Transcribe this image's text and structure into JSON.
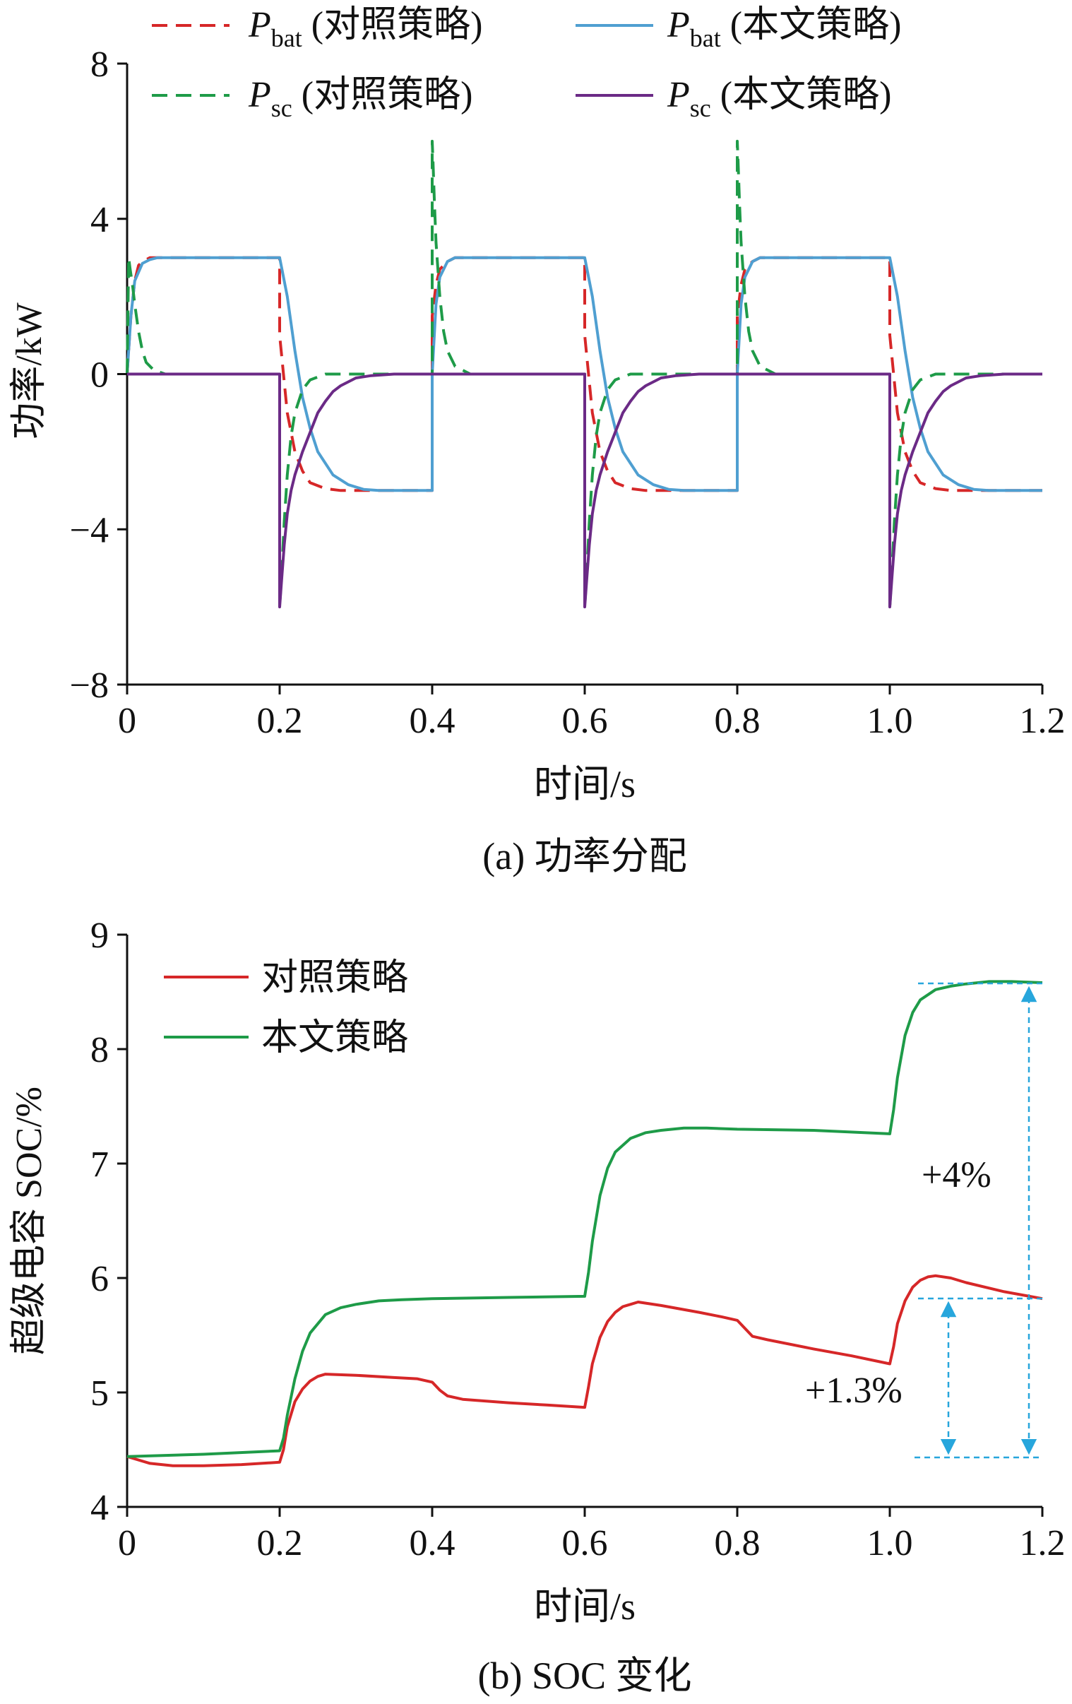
{
  "colors": {
    "red": "#d62728",
    "blue": "#4f9fd1",
    "green": "#1e9b48",
    "purple": "#6b2a86",
    "cyan": "#27a6dc",
    "axis": "#111111"
  },
  "chart_data": [
    {
      "type": "line",
      "caption": "(a)  功率分配",
      "xlabel": "时间/s",
      "ylabel": "功率/kW",
      "xlim": [
        0,
        1.2
      ],
      "ylim": [
        -8,
        8
      ],
      "xticks": [
        "0",
        "0.2",
        "0.4",
        "0.6",
        "0.8",
        "1.0",
        "1.2"
      ],
      "yticks": [
        "8",
        "4",
        "0",
        "−4",
        "−8"
      ],
      "legend_position": "top",
      "legend": [
        {
          "main": "P",
          "sub": "bat",
          "suffix": " (对照策略)",
          "color": "red",
          "dash": true
        },
        {
          "main": "P",
          "sub": "bat",
          "suffix": " (本文策略)",
          "color": "blue",
          "dash": false
        },
        {
          "main": "P",
          "sub": "sc",
          "suffix": " (对照策略)",
          "color": "green",
          "dash": true
        },
        {
          "main": "P",
          "sub": "sc",
          "suffix": " (本文策略)",
          "color": "purple",
          "dash": false
        }
      ],
      "series": [
        {
          "key": "pbat_cmp",
          "color": "red",
          "dash": true,
          "x": [
            0,
            0.005,
            0.01,
            0.015,
            0.02,
            0.03,
            0.04,
            0.05,
            0.2,
            0.2,
            0.205,
            0.21,
            0.22,
            0.23,
            0.24,
            0.26,
            0.28,
            0.3,
            0.4,
            0.4,
            0.405,
            0.41,
            0.42,
            0.43,
            0.45,
            0.6,
            0.6,
            0.605,
            0.61,
            0.62,
            0.63,
            0.64,
            0.66,
            0.68,
            0.7,
            0.8,
            0.8,
            0.805,
            0.81,
            0.82,
            0.83,
            0.85,
            1.0,
            1.0,
            1.005,
            1.01,
            1.02,
            1.03,
            1.04,
            1.06,
            1.08,
            1.1,
            1.2
          ],
          "y": [
            0,
            1.5,
            2.4,
            2.8,
            2.9,
            3.0,
            3.0,
            3.0,
            3.0,
            1.0,
            0.0,
            -1.0,
            -2.0,
            -2.5,
            -2.8,
            -2.95,
            -3.0,
            -3.0,
            -3.0,
            1.5,
            2.3,
            2.7,
            2.9,
            3.0,
            3.0,
            3.0,
            1.0,
            0.0,
            -1.0,
            -2.0,
            -2.5,
            -2.8,
            -2.95,
            -3.0,
            -3.0,
            -3.0,
            1.5,
            2.3,
            2.7,
            2.9,
            3.0,
            3.0,
            3.0,
            1.0,
            0.0,
            -1.0,
            -2.0,
            -2.5,
            -2.8,
            -2.95,
            -3.0,
            -3.0,
            -3.0
          ]
        },
        {
          "key": "pbat_new",
          "color": "blue",
          "dash": false,
          "x": [
            0,
            0.005,
            0.01,
            0.02,
            0.03,
            0.04,
            0.05,
            0.2,
            0.21,
            0.22,
            0.23,
            0.24,
            0.25,
            0.27,
            0.29,
            0.31,
            0.33,
            0.4,
            0.4,
            0.405,
            0.41,
            0.42,
            0.43,
            0.45,
            0.6,
            0.61,
            0.62,
            0.63,
            0.64,
            0.65,
            0.67,
            0.69,
            0.71,
            0.73,
            0.8,
            0.8,
            0.805,
            0.81,
            0.82,
            0.83,
            0.85,
            1.0,
            1.01,
            1.02,
            1.03,
            1.04,
            1.05,
            1.07,
            1.09,
            1.11,
            1.13,
            1.2
          ],
          "y": [
            0,
            1.5,
            2.4,
            2.85,
            2.95,
            3.0,
            3.0,
            3.0,
            2.0,
            0.6,
            -0.6,
            -1.4,
            -2.0,
            -2.6,
            -2.85,
            -2.97,
            -3.0,
            -3.0,
            0,
            1.8,
            2.5,
            2.9,
            3.0,
            3.0,
            3.0,
            2.0,
            0.6,
            -0.6,
            -1.4,
            -2.0,
            -2.6,
            -2.85,
            -2.97,
            -3.0,
            -3.0,
            0,
            1.8,
            2.5,
            2.9,
            3.0,
            3.0,
            3.0,
            2.0,
            0.6,
            -0.6,
            -1.4,
            -2.0,
            -2.6,
            -2.85,
            -2.97,
            -3.0,
            -3.0
          ]
        },
        {
          "key": "psc_cmp",
          "color": "green",
          "dash": true,
          "x": [
            0,
            0.002,
            0.004,
            0.007,
            0.01,
            0.015,
            0.02,
            0.025,
            0.035,
            0.05,
            0.2,
            0.2,
            0.203,
            0.206,
            0.21,
            0.215,
            0.22,
            0.23,
            0.24,
            0.26,
            0.28,
            0.4,
            0.4,
            0.401,
            0.403,
            0.405,
            0.41,
            0.415,
            0.42,
            0.43,
            0.45,
            0.6,
            0.6,
            0.603,
            0.606,
            0.61,
            0.615,
            0.62,
            0.63,
            0.64,
            0.66,
            0.68,
            0.8,
            0.8,
            0.801,
            0.803,
            0.805,
            0.81,
            0.815,
            0.82,
            0.83,
            0.85,
            1.0,
            1.0,
            1.003,
            1.006,
            1.01,
            1.015,
            1.02,
            1.03,
            1.04,
            1.06,
            1.08,
            1.2
          ],
          "y": [
            0,
            3.0,
            2.7,
            2.3,
            1.8,
            1.1,
            0.6,
            0.3,
            0.1,
            0,
            0,
            -6.0,
            -5.0,
            -3.8,
            -2.6,
            -1.6,
            -1.0,
            -0.4,
            -0.15,
            0,
            0,
            0,
            6.0,
            5.5,
            4.4,
            3.4,
            2.0,
            1.1,
            0.6,
            0.2,
            0,
            0,
            -6.0,
            -5.0,
            -3.8,
            -2.6,
            -1.6,
            -1.0,
            -0.4,
            -0.15,
            0,
            0,
            0,
            6.0,
            5.5,
            4.4,
            3.4,
            2.0,
            1.1,
            0.6,
            0.2,
            0,
            0,
            -6.0,
            -5.0,
            -3.8,
            -2.6,
            -1.6,
            -1.0,
            -0.4,
            -0.15,
            0,
            0,
            0
          ]
        },
        {
          "key": "psc_new",
          "color": "purple",
          "dash": false,
          "x": [
            0,
            0.01,
            0.2,
            0.2,
            0.203,
            0.206,
            0.21,
            0.215,
            0.22,
            0.23,
            0.24,
            0.25,
            0.26,
            0.27,
            0.28,
            0.3,
            0.32,
            0.35,
            0.4,
            0.6,
            0.6,
            0.603,
            0.606,
            0.61,
            0.615,
            0.62,
            0.63,
            0.64,
            0.65,
            0.66,
            0.67,
            0.68,
            0.7,
            0.72,
            0.75,
            0.8,
            1.0,
            1.0,
            1.003,
            1.006,
            1.01,
            1.015,
            1.02,
            1.03,
            1.04,
            1.05,
            1.06,
            1.07,
            1.08,
            1.1,
            1.12,
            1.15,
            1.2
          ],
          "y": [
            0,
            0,
            0,
            -6.0,
            -5.2,
            -4.4,
            -3.6,
            -3.0,
            -2.6,
            -2.0,
            -1.5,
            -1.0,
            -0.7,
            -0.45,
            -0.3,
            -0.1,
            -0.04,
            0,
            0,
            0,
            -6.0,
            -5.2,
            -4.4,
            -3.6,
            -3.0,
            -2.6,
            -2.0,
            -1.5,
            -1.0,
            -0.7,
            -0.45,
            -0.3,
            -0.1,
            -0.04,
            0,
            0,
            0,
            -6.0,
            -5.2,
            -4.4,
            -3.6,
            -3.0,
            -2.6,
            -2.0,
            -1.5,
            -1.0,
            -0.7,
            -0.45,
            -0.3,
            -0.1,
            -0.04,
            0,
            0
          ]
        }
      ]
    },
    {
      "type": "line",
      "caption": "(b)  SOC 变化",
      "xlabel": "时间/s",
      "ylabel": "超级电容 SOC/%",
      "xlim": [
        0,
        1.2
      ],
      "ylim": [
        4,
        9
      ],
      "xticks": [
        "0",
        "0.2",
        "0.4",
        "0.6",
        "0.8",
        "1.0",
        "1.2"
      ],
      "yticks": [
        "9",
        "8",
        "7",
        "6",
        "5",
        "4"
      ],
      "legend_position": "top-left",
      "legend": [
        {
          "label": "对照策略",
          "color": "red"
        },
        {
          "label": "本文策略",
          "color": "green"
        }
      ],
      "series": [
        {
          "key": "soc_cmp",
          "name": "对照策略",
          "color": "red",
          "x": [
            0,
            0.01,
            0.03,
            0.06,
            0.1,
            0.15,
            0.2,
            0.205,
            0.21,
            0.22,
            0.23,
            0.24,
            0.25,
            0.26,
            0.3,
            0.35,
            0.38,
            0.4,
            0.41,
            0.42,
            0.44,
            0.5,
            0.55,
            0.6,
            0.605,
            0.61,
            0.62,
            0.63,
            0.64,
            0.65,
            0.66,
            0.67,
            0.7,
            0.75,
            0.78,
            0.8,
            0.81,
            0.82,
            0.84,
            0.9,
            0.95,
            1.0,
            1.005,
            1.01,
            1.02,
            1.03,
            1.04,
            1.05,
            1.06,
            1.08,
            1.1,
            1.15,
            1.2
          ],
          "y": [
            4.44,
            4.42,
            4.38,
            4.36,
            4.36,
            4.37,
            4.39,
            4.5,
            4.7,
            4.92,
            5.03,
            5.1,
            5.14,
            5.16,
            5.15,
            5.13,
            5.12,
            5.09,
            5.02,
            4.97,
            4.94,
            4.91,
            4.89,
            4.87,
            5.05,
            5.25,
            5.48,
            5.62,
            5.7,
            5.75,
            5.77,
            5.79,
            5.76,
            5.7,
            5.66,
            5.63,
            5.56,
            5.49,
            5.46,
            5.38,
            5.32,
            5.25,
            5.4,
            5.6,
            5.8,
            5.92,
            5.98,
            6.01,
            6.02,
            6.0,
            5.96,
            5.88,
            5.82
          ]
        },
        {
          "key": "soc_new",
          "name": "本文策略",
          "color": "green",
          "x": [
            0,
            0.1,
            0.2,
            0.205,
            0.21,
            0.22,
            0.23,
            0.24,
            0.26,
            0.28,
            0.3,
            0.33,
            0.36,
            0.4,
            0.5,
            0.6,
            0.605,
            0.61,
            0.62,
            0.63,
            0.64,
            0.66,
            0.68,
            0.7,
            0.73,
            0.76,
            0.8,
            0.9,
            1.0,
            1.005,
            1.01,
            1.02,
            1.03,
            1.04,
            1.06,
            1.08,
            1.1,
            1.13,
            1.16,
            1.2
          ],
          "y": [
            4.44,
            4.46,
            4.49,
            4.6,
            4.8,
            5.12,
            5.36,
            5.52,
            5.68,
            5.74,
            5.77,
            5.8,
            5.81,
            5.82,
            5.83,
            5.84,
            6.05,
            6.32,
            6.72,
            6.96,
            7.1,
            7.22,
            7.27,
            7.29,
            7.31,
            7.31,
            7.3,
            7.29,
            7.26,
            7.47,
            7.75,
            8.12,
            8.32,
            8.43,
            8.52,
            8.55,
            8.57,
            8.59,
            8.59,
            8.58
          ]
        }
      ],
      "annotations": [
        {
          "text": "+4%",
          "color": "cyan"
        },
        {
          "text": "+1.3%",
          "color": "cyan"
        }
      ]
    }
  ]
}
